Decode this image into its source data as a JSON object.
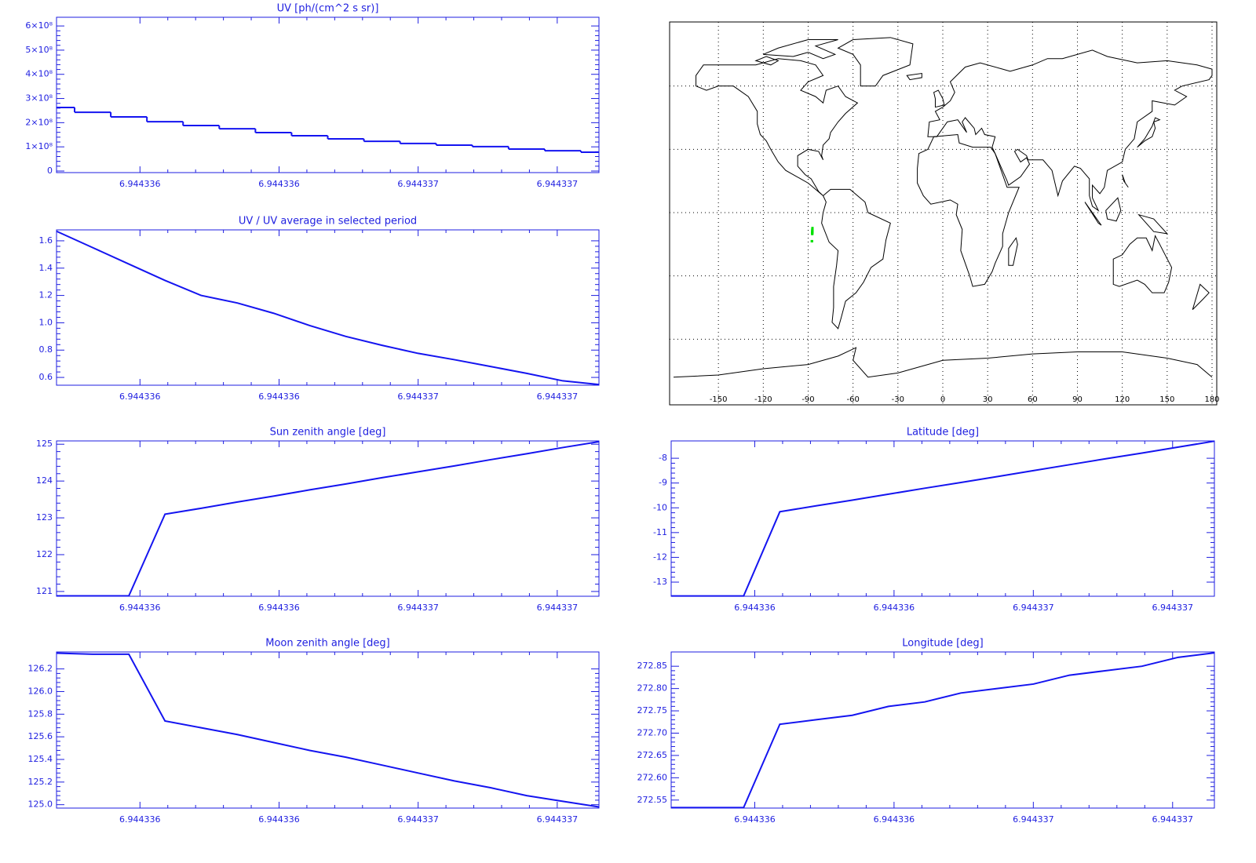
{
  "chart_data": [
    {
      "type": "step",
      "title": "UV [ph/(cm^2 s sr)]",
      "color": "#1414f0",
      "x": [
        6.94433556,
        6.944335664,
        6.944335768,
        6.944335872,
        6.944335976,
        6.94433608,
        6.944336184,
        6.944336288,
        6.944336392,
        6.944336496,
        6.9443366,
        6.944336704,
        6.944336808,
        6.944336912,
        6.944337016,
        6.94433712
      ],
      "values": [
        263000000,
        243000000,
        224000000,
        204000000,
        188000000,
        175000000,
        159000000,
        146000000,
        133000000,
        123000000,
        114000000,
        107000000,
        101000000,
        91000000,
        84000000,
        78000000
      ],
      "xlim": [
        6.94433556,
        6.94433712
      ],
      "xticks": [
        {
          "value": 6.9443358,
          "label": "6.944336"
        },
        {
          "value": 6.9443362,
          "label": "6.944336"
        },
        {
          "value": 6.9443366,
          "label": "6.944337"
        },
        6.944337
      ],
      "ylim": [
        -6500000,
        636000000
      ],
      "yticks": [
        0,
        {
          "value": 100000000,
          "label": "1×10⁸"
        },
        {
          "value": 200000000,
          "label": "2×10⁸"
        },
        {
          "value": 300000000,
          "label": "3×10⁸"
        },
        {
          "value": 400000000,
          "label": "4×10⁸"
        },
        {
          "value": 500000000,
          "label": "5×10⁸"
        },
        {
          "value": 600000000,
          "label": "6×10⁸"
        }
      ]
    },
    {
      "type": "line",
      "title": "UV / UV average in selected period",
      "color": "#1414f0",
      "x": [
        6.94433556,
        6.944335664,
        6.944335768,
        6.944335872,
        6.944335976,
        6.94433608,
        6.944336184,
        6.944336288,
        6.944336392,
        6.944336496,
        6.9443366,
        6.944336704,
        6.944336808,
        6.944336912,
        6.944337016,
        6.94433712
      ],
      "values": [
        1.67,
        1.55,
        1.43,
        1.31,
        1.2,
        1.145,
        1.07,
        0.98,
        0.9,
        0.835,
        0.776,
        0.73,
        0.68,
        0.63,
        0.575,
        0.548
      ],
      "xlim": [
        6.94433556,
        6.94433712
      ],
      "xticks": [
        {
          "value": 6.9443358,
          "label": "6.944336"
        },
        {
          "value": 6.9443362,
          "label": "6.944336"
        },
        {
          "value": 6.9443366,
          "label": "6.944337"
        },
        6.944337
      ],
      "ylim": [
        0.543,
        1.68
      ],
      "yticks": [
        0.6,
        0.8,
        {
          "value": 1,
          "label": "1.0"
        },
        1.2,
        1.4,
        1.6
      ]
    },
    {
      "type": "map",
      "xlim": [
        -180,
        180
      ],
      "ylim": [
        -90,
        90
      ],
      "xticks": [
        -150,
        -120,
        -90,
        -60,
        -30,
        0,
        30,
        60,
        90,
        120,
        150,
        180
      ],
      "yticks": [
        -60,
        -30,
        0,
        30,
        60
      ],
      "grid": true,
      "track_color": "#00e000"
    },
    {
      "type": "line",
      "title": "Sun zenith angle [deg]",
      "color": "#1414f0",
      "x": [
        6.94433556,
        6.944335664,
        6.944335768,
        6.944335872,
        6.944335976,
        6.94433608,
        6.944336184,
        6.944336288,
        6.944336392,
        6.944336496,
        6.9443366,
        6.944336704,
        6.944336808,
        6.944336912,
        6.944337016,
        6.94433712
      ],
      "values": [
        120.88,
        120.88,
        120.88,
        123.1,
        123.26,
        123.43,
        123.59,
        123.76,
        123.92,
        124.09,
        124.25,
        124.41,
        124.58,
        124.74,
        124.91,
        125.07
      ],
      "xlim": [
        6.94433556,
        6.94433712
      ],
      "xticks": [
        {
          "value": 6.9443358,
          "label": "6.944336"
        },
        {
          "value": 6.9443362,
          "label": "6.944336"
        },
        {
          "value": 6.9443366,
          "label": "6.944337"
        },
        6.944337
      ],
      "ylim": [
        120.87,
        125.09
      ],
      "yticks": [
        121,
        122,
        123,
        124,
        125
      ]
    },
    {
      "type": "line",
      "title": "Latitude [deg]",
      "color": "#1414f0",
      "x": [
        6.94433556,
        6.944335664,
        6.944335768,
        6.944335872,
        6.944335976,
        6.94433608,
        6.944336184,
        6.944336288,
        6.944336392,
        6.944336496,
        6.9443366,
        6.944336704,
        6.944336808,
        6.944336912,
        6.944337016,
        6.94433712
      ],
      "values": [
        -13.56,
        -13.56,
        -13.56,
        -10.16,
        -9.92,
        -9.69,
        -9.45,
        -9.21,
        -8.98,
        -8.74,
        -8.5,
        -8.26,
        -8.02,
        -7.79,
        -7.55,
        -7.31
      ],
      "xlim": [
        6.94433556,
        6.94433712
      ],
      "xticks": [
        {
          "value": 6.9443358,
          "label": "6.944336"
        },
        {
          "value": 6.9443362,
          "label": "6.944336"
        },
        {
          "value": 6.9443366,
          "label": "6.944337"
        },
        6.944337
      ],
      "ylim": [
        -13.57,
        -7.3
      ],
      "yticks": [
        -13,
        -12,
        -11,
        -10,
        -9,
        -8
      ]
    },
    {
      "type": "line",
      "title": "Moon zenith angle [deg]",
      "color": "#1414f0",
      "x": [
        6.94433556,
        6.944335664,
        6.944335768,
        6.944335872,
        6.944335976,
        6.94433608,
        6.944336184,
        6.944336288,
        6.944336392,
        6.944336496,
        6.9443366,
        6.944336704,
        6.944336808,
        6.944336912,
        6.944337016,
        6.94433712
      ],
      "values": [
        126.34,
        126.33,
        126.33,
        125.74,
        125.68,
        125.62,
        125.55,
        125.48,
        125.42,
        125.35,
        125.28,
        125.21,
        125.15,
        125.08,
        125.03,
        124.98
      ],
      "xlim": [
        6.94433556,
        6.94433712
      ],
      "xticks": [
        {
          "value": 6.9443358,
          "label": "6.944336"
        },
        {
          "value": 6.9443362,
          "label": "6.944336"
        },
        {
          "value": 6.9443366,
          "label": "6.944337"
        },
        6.944337
      ],
      "ylim": [
        124.97,
        126.35
      ],
      "yticks": [
        {
          "value": 125,
          "label": "125.0"
        },
        125.2,
        125.4,
        125.6,
        125.8,
        {
          "value": 126,
          "label": "126.0"
        },
        126.2
      ]
    },
    {
      "type": "line",
      "title": "Longitude [deg]",
      "color": "#1414f0",
      "x": [
        6.94433556,
        6.944335664,
        6.944335768,
        6.944335872,
        6.944335976,
        6.94433608,
        6.944336184,
        6.944336288,
        6.944336392,
        6.944336496,
        6.9443366,
        6.944336704,
        6.944336808,
        6.944336912,
        6.944337016,
        6.94433712
      ],
      "values": [
        272.533,
        272.533,
        272.533,
        272.72,
        272.73,
        272.74,
        272.76,
        272.77,
        272.79,
        272.8,
        272.81,
        272.83,
        272.84,
        272.85,
        272.87,
        272.88
      ],
      "xlim": [
        6.94433556,
        6.94433712
      ],
      "xticks": [
        {
          "value": 6.9443358,
          "label": "6.944336"
        },
        {
          "value": 6.9443362,
          "label": "6.944336"
        },
        {
          "value": 6.9443366,
          "label": "6.944337"
        },
        6.944337
      ],
      "ylim": [
        272.532,
        272.882
      ],
      "yticks": [
        272.55,
        {
          "value": 272.6,
          "label": "272.60"
        },
        272.65,
        {
          "value": 272.7,
          "label": "272.70"
        },
        272.75,
        {
          "value": 272.8,
          "label": "272.80"
        },
        272.85
      ]
    }
  ]
}
